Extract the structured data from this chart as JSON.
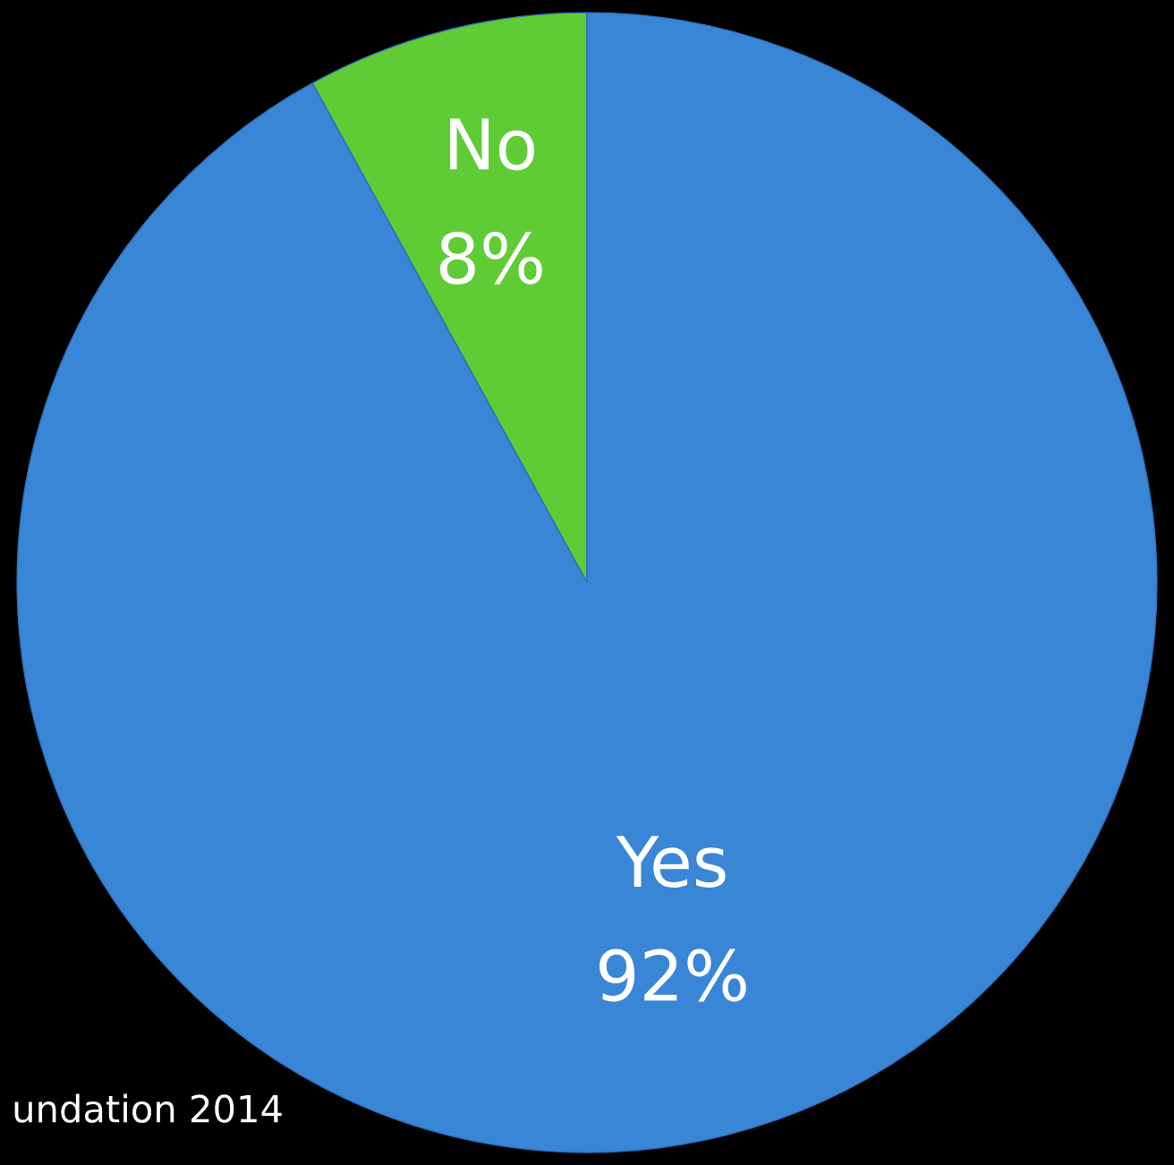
{
  "chart_data": {
    "type": "pie",
    "categories": [
      "No",
      "Yes"
    ],
    "values": [
      8,
      92
    ],
    "colors": [
      "#5fcc35",
      "#3a86d6"
    ],
    "value_labels": [
      "8%",
      "92%"
    ],
    "annotations": [
      "undation 2014"
    ]
  }
}
